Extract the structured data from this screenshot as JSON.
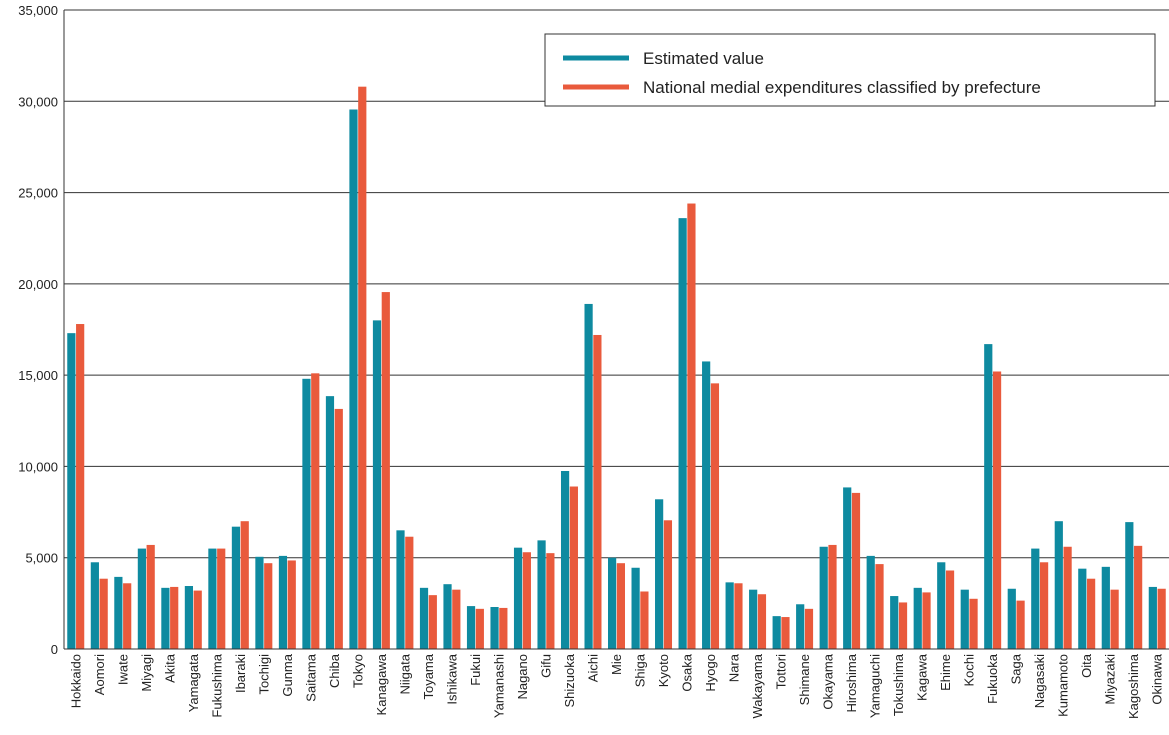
{
  "chart_data": {
    "type": "bar",
    "title": "",
    "xlabel": "",
    "ylabel": "",
    "ylim": [
      0,
      35000
    ],
    "yticks": [
      0,
      5000,
      10000,
      15000,
      20000,
      25000,
      30000,
      35000
    ],
    "ytick_labels": [
      "0",
      "5,000",
      "10,000",
      "15,000",
      "20,000",
      "25,000",
      "30,000",
      "35,000"
    ],
    "grid": "horizontal",
    "legend_position": "top-right",
    "categories": [
      "Hokkaido",
      "Aomori",
      "Iwate",
      "Miyagi",
      "Akita",
      "Yamagata",
      "Fukushima",
      "Ibaraki",
      "Tochigi",
      "Gunma",
      "Saitama",
      "Chiba",
      "Tokyo",
      "Kanagawa",
      "Niigata",
      "Toyama",
      "Ishikawa",
      "Fukui",
      "Yamanashi",
      "Nagano",
      "Gifu",
      "Shizuoka",
      "Aichi",
      "Mie",
      "Shiga",
      "Kyoto",
      "Osaka",
      "Hyogo",
      "Nara",
      "Wakayama",
      "Tottori",
      "Shimane",
      "Okayama",
      "Hiroshima",
      "Yamaguchi",
      "Tokushima",
      "Kagawa",
      "Ehime",
      "Kochi",
      "Fukuoka",
      "Saga",
      "Nagasaki",
      "Kumamoto",
      "Oita",
      "Miyazaki",
      "Kagoshima",
      "Okinawa"
    ],
    "series": [
      {
        "name": "Estimated value",
        "color": "#0e8aa0",
        "values": [
          17300,
          4750,
          3950,
          5500,
          3350,
          3450,
          5500,
          6700,
          5050,
          5100,
          14800,
          13850,
          29550,
          18000,
          6500,
          3350,
          3550,
          2350,
          2300,
          5550,
          5950,
          9750,
          18900,
          5000,
          4450,
          8200,
          23600,
          15750,
          3650,
          3250,
          1800,
          2450,
          5600,
          8850,
          5100,
          2900,
          3350,
          4750,
          3250,
          16700,
          3300,
          5500,
          7000,
          4400,
          4500,
          6950,
          3400
        ]
      },
      {
        "name": "National medial expenditures classified by prefecture",
        "color": "#e95a3c",
        "values": [
          17800,
          3850,
          3600,
          5700,
          3400,
          3200,
          5500,
          7000,
          4700,
          4850,
          15100,
          13150,
          30800,
          19550,
          6150,
          2950,
          3250,
          2200,
          2250,
          5300,
          5250,
          8900,
          17200,
          4700,
          3150,
          7050,
          24400,
          14550,
          3600,
          3000,
          1750,
          2200,
          5700,
          8550,
          4650,
          2550,
          3100,
          4300,
          2750,
          15200,
          2650,
          4750,
          5600,
          3850,
          3250,
          5650,
          3300
        ]
      }
    ]
  }
}
